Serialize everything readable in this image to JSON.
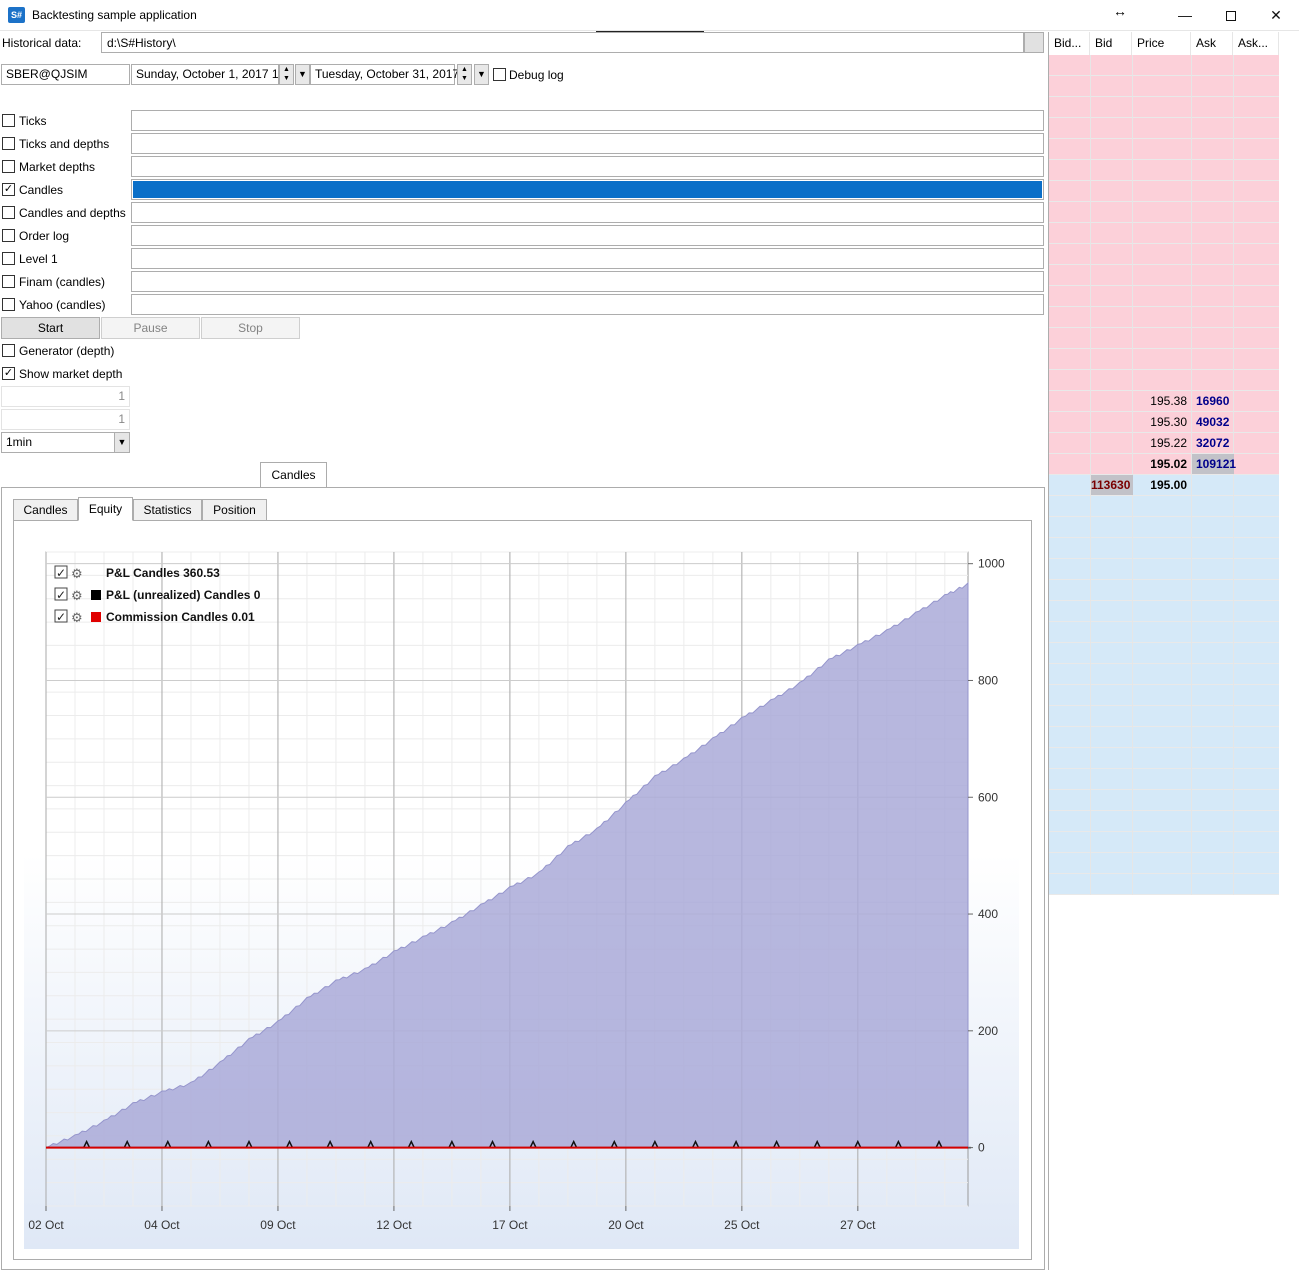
{
  "window": {
    "title": "Backtesting sample application",
    "icon": "S#"
  },
  "historical": {
    "label": "Historical data:",
    "path": "d:\\S#History\\"
  },
  "security": {
    "value": "SBER@QJSIM"
  },
  "dates": {
    "from": "Sunday, October 1, 2017 1:",
    "to": "Tuesday, October 31, 2017"
  },
  "debug_log": {
    "label": "Debug log",
    "checked": false
  },
  "sources": [
    {
      "label": "Ticks",
      "checked": false,
      "progress": 0
    },
    {
      "label": "Ticks and depths",
      "checked": false,
      "progress": 0
    },
    {
      "label": "Market depths",
      "checked": false,
      "progress": 0
    },
    {
      "label": "Candles",
      "checked": true,
      "progress": 1.0
    },
    {
      "label": "Candles and depths",
      "checked": false,
      "progress": 0
    },
    {
      "label": "Order log",
      "checked": false,
      "progress": 0
    },
    {
      "label": "Level 1",
      "checked": false,
      "progress": 0
    },
    {
      "label": "Finam (candles)",
      "checked": false,
      "progress": 0
    },
    {
      "label": "Yahoo (candles)",
      "checked": false,
      "progress": 0
    }
  ],
  "buttons": {
    "start": "Start",
    "pause": "Pause",
    "stop": "Stop"
  },
  "generator": {
    "label": "Generator (depth)",
    "checked": false
  },
  "show_depth": {
    "label": "Show market depth",
    "checked": true
  },
  "spinners": {
    "first": "1",
    "second": "1"
  },
  "timeframe": {
    "value": "1min"
  },
  "outer_tab": {
    "label": "Candles"
  },
  "inner_tabs": [
    "Candles",
    "Equity",
    "Statistics",
    "Position"
  ],
  "legend": [
    {
      "label": "P&L Candles",
      "value": "360.53",
      "color": ""
    },
    {
      "label": "P&L (unrealized) Candles",
      "value": "0",
      "color": "#000000"
    },
    {
      "label": "Commission Candles",
      "value": "0.01",
      "color": "#e00000"
    }
  ],
  "depth": {
    "headers": [
      "Bid...",
      "Bid",
      "Price",
      "Ask",
      "Ask..."
    ],
    "asks": [
      {
        "price": "195.38",
        "volume": "16960"
      },
      {
        "price": "195.30",
        "volume": "49032"
      },
      {
        "price": "195.22",
        "volume": "32072"
      },
      {
        "price": "195.02",
        "volume": "109121"
      }
    ],
    "bids": [
      {
        "price": "195.00",
        "volume": "113630"
      }
    ]
  },
  "chart_data": {
    "type": "area",
    "title": "",
    "x_ticks": [
      "02 Oct",
      "04 Oct",
      "09 Oct",
      "12 Oct",
      "17 Oct",
      "20 Oct",
      "25 Oct",
      "27 Oct"
    ],
    "y_ticks": [
      0,
      200,
      400,
      600,
      800,
      1000
    ],
    "ylim": [
      -100,
      1020
    ],
    "grid": true,
    "legend_position": "top-left",
    "series": [
      {
        "name": "P&L Candles",
        "color": "#aaaad8",
        "x": [
          0,
          0.5,
          1,
          1.5,
          2,
          2.5,
          3,
          3.5,
          4,
          4.5,
          5,
          5.5,
          6,
          6.5,
          7,
          7.5,
          8,
          8.5,
          9,
          9.5,
          10,
          10.5,
          11,
          11.5,
          12,
          12.5,
          13,
          13.5,
          14,
          14.5,
          15,
          15.5,
          15.9
        ],
        "values": [
          0,
          20,
          45,
          75,
          95,
          110,
          145,
          185,
          215,
          255,
          285,
          305,
          335,
          360,
          385,
          415,
          445,
          470,
          515,
          545,
          590,
          635,
          665,
          700,
          735,
          765,
          795,
          835,
          860,
          885,
          915,
          945,
          965
        ]
      },
      {
        "name": "P&L (unrealized) Candles",
        "color": "#000000",
        "x": [
          0,
          15.9
        ],
        "values": [
          0,
          0
        ]
      },
      {
        "name": "Commission Candles",
        "color": "#e00000",
        "x": [
          0,
          15.9
        ],
        "values": [
          0,
          0
        ]
      }
    ]
  }
}
